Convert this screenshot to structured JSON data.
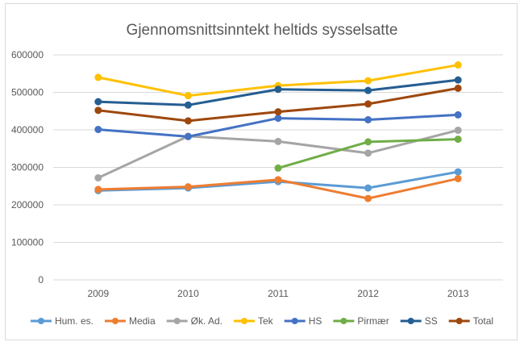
{
  "chart_data": {
    "type": "line",
    "title": "Gjennomsnittsinntekt heltids sysselsatte",
    "xlabel": "",
    "ylabel": "",
    "categories": [
      "2009",
      "2010",
      "2011",
      "2012",
      "2013"
    ],
    "ylim": [
      0,
      600000
    ],
    "yticks": [
      "0",
      "100000",
      "200000",
      "300000",
      "400000",
      "500000",
      "600000"
    ],
    "grid": true,
    "legend_position": "bottom",
    "series": [
      {
        "name": "Hum. es.",
        "color": "#5B9BD5",
        "values": [
          238000,
          245000,
          262000,
          245000,
          288000
        ]
      },
      {
        "name": "Media",
        "color": "#ED7D31",
        "values": [
          241000,
          248000,
          267000,
          217000,
          270000
        ]
      },
      {
        "name": "Øk. Ad.",
        "color": "#A5A5A5",
        "values": [
          272000,
          383000,
          369000,
          338000,
          399000
        ]
      },
      {
        "name": "Tek",
        "color": "#FFC000",
        "values": [
          540000,
          491000,
          518000,
          531000,
          573000
        ]
      },
      {
        "name": "HS",
        "color": "#4472C4",
        "values": [
          401000,
          382000,
          431000,
          427000,
          440000
        ]
      },
      {
        "name": "Pirmær",
        "color": "#70AD47",
        "values": [
          null,
          null,
          298000,
          368000,
          375000
        ]
      },
      {
        "name": "SS",
        "color": "#255E91",
        "values": [
          475000,
          466000,
          508000,
          505000,
          533000
        ]
      },
      {
        "name": "Total",
        "color": "#9E480E",
        "values": [
          452000,
          424000,
          448000,
          469000,
          511000
        ]
      }
    ]
  }
}
